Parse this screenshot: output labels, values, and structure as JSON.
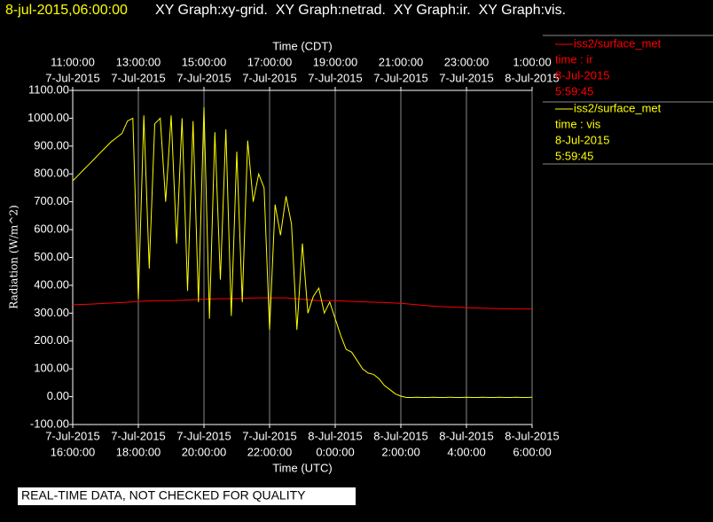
{
  "chart_data": {
    "type": "line",
    "title_time": "8-jul-2015,06:00:00",
    "title": "XY Graph:xy-grid.  XY Graph:netrad.  XY Graph:ir.  XY Graph:vis.",
    "xlabel": "Time (UTC)",
    "x2label": "Time (CDT)",
    "ylabel": "Radiation (W/m^2)",
    "note": "REAL-TIME DATA, NOT CHECKED FOR QUALITY",
    "grid": true,
    "xlim": [
      "2015-07-07T16:00:00",
      "2015-07-08T06:00:00"
    ],
    "xticks": [
      {
        "value": "2015-07-07T16:00:00",
        "label": [
          "7-Jul-2015",
          "16:00:00"
        ]
      },
      {
        "value": "2015-07-07T18:00:00",
        "label": [
          "7-Jul-2015",
          "18:00:00"
        ]
      },
      {
        "value": "2015-07-07T20:00:00",
        "label": [
          "7-Jul-2015",
          "20:00:00"
        ]
      },
      {
        "value": "2015-07-07T22:00:00",
        "label": [
          "7-Jul-2015",
          "22:00:00"
        ]
      },
      {
        "value": "2015-07-08T00:00:00",
        "label": [
          "8-Jul-2015",
          "0:00:00"
        ]
      },
      {
        "value": "2015-07-08T02:00:00",
        "label": [
          "8-Jul-2015",
          "2:00:00"
        ]
      },
      {
        "value": "2015-07-08T04:00:00",
        "label": [
          "8-Jul-2015",
          "4:00:00"
        ]
      },
      {
        "value": "2015-07-08T06:00:00",
        "label": [
          "8-Jul-2015",
          "6:00:00"
        ]
      }
    ],
    "x2ticks": [
      {
        "value": "2015-07-07T16:00:00",
        "label": [
          "11:00:00",
          "7-Jul-2015"
        ]
      },
      {
        "value": "2015-07-07T18:00:00",
        "label": [
          "13:00:00",
          "7-Jul-2015"
        ]
      },
      {
        "value": "2015-07-07T20:00:00",
        "label": [
          "15:00:00",
          "7-Jul-2015"
        ]
      },
      {
        "value": "2015-07-07T22:00:00",
        "label": [
          "17:00:00",
          "7-Jul-2015"
        ]
      },
      {
        "value": "2015-07-08T00:00:00",
        "label": [
          "19:00:00",
          "7-Jul-2015"
        ]
      },
      {
        "value": "2015-07-08T02:00:00",
        "label": [
          "21:00:00",
          "7-Jul-2015"
        ]
      },
      {
        "value": "2015-07-08T04:00:00",
        "label": [
          "23:00:00",
          "7-Jul-2015"
        ]
      },
      {
        "value": "2015-07-08T06:00:00",
        "label": [
          "1:00:00",
          "8-Jul-2015"
        ]
      }
    ],
    "ylim": [
      -100,
      1100
    ],
    "yticks": [
      {
        "value": -100,
        "label": "-100.00"
      },
      {
        "value": 0,
        "label": "0.00"
      },
      {
        "value": 100,
        "label": "100.00"
      },
      {
        "value": 200,
        "label": "200.00"
      },
      {
        "value": 300,
        "label": "300.00"
      },
      {
        "value": 400,
        "label": "400.00"
      },
      {
        "value": 500,
        "label": "500.00"
      },
      {
        "value": 600,
        "label": "600.00"
      },
      {
        "value": 700,
        "label": "700.00"
      },
      {
        "value": 800,
        "label": "800.00"
      },
      {
        "value": 900,
        "label": "900.00"
      },
      {
        "value": 1000,
        "label": "1000.00"
      },
      {
        "value": 1100,
        "label": "1100.00"
      }
    ],
    "series": [
      {
        "name": "iss2/surface_met",
        "label": "time : ir",
        "date": "8-Jul-2015",
        "time": "5:59:45",
        "color": "#ff0000",
        "x": [
          "2015-07-07T16:00:00",
          "2015-07-07T16:30:00",
          "2015-07-07T17:00:00",
          "2015-07-07T17:30:00",
          "2015-07-07T18:00:00",
          "2015-07-07T18:30:00",
          "2015-07-07T19:00:00",
          "2015-07-07T19:30:00",
          "2015-07-07T20:00:00",
          "2015-07-07T20:30:00",
          "2015-07-07T21:00:00",
          "2015-07-07T21:30:00",
          "2015-07-07T22:00:00",
          "2015-07-07T22:30:00",
          "2015-07-07T23:00:00",
          "2015-07-07T23:30:00",
          "2015-07-08T00:00:00",
          "2015-07-08T00:30:00",
          "2015-07-08T01:00:00",
          "2015-07-08T01:30:00",
          "2015-07-08T02:00:00",
          "2015-07-08T02:30:00",
          "2015-07-08T03:00:00",
          "2015-07-08T03:30:00",
          "2015-07-08T04:00:00",
          "2015-07-08T04:30:00",
          "2015-07-08T05:00:00",
          "2015-07-08T05:30:00",
          "2015-07-08T06:00:00"
        ],
        "values": [
          330,
          332,
          335,
          338,
          342,
          345,
          345,
          347,
          350,
          352,
          352,
          355,
          355,
          355,
          350,
          345,
          345,
          342,
          340,
          338,
          335,
          330,
          325,
          322,
          320,
          318,
          316,
          315,
          315
        ]
      },
      {
        "name": "iss2/surface_met",
        "label": "time : vis",
        "date": "8-Jul-2015",
        "time": "5:59:45",
        "color": "#ffff00",
        "x": [
          "2015-07-07T16:00:00",
          "2015-07-07T16:10:00",
          "2015-07-07T16:20:00",
          "2015-07-07T16:30:00",
          "2015-07-07T16:40:00",
          "2015-07-07T16:50:00",
          "2015-07-07T17:00:00",
          "2015-07-07T17:10:00",
          "2015-07-07T17:20:00",
          "2015-07-07T17:30:00",
          "2015-07-07T17:40:00",
          "2015-07-07T17:50:00",
          "2015-07-07T18:00:00",
          "2015-07-07T18:10:00",
          "2015-07-07T18:20:00",
          "2015-07-07T18:30:00",
          "2015-07-07T18:40:00",
          "2015-07-07T18:50:00",
          "2015-07-07T19:00:00",
          "2015-07-07T19:10:00",
          "2015-07-07T19:20:00",
          "2015-07-07T19:30:00",
          "2015-07-07T19:40:00",
          "2015-07-07T19:50:00",
          "2015-07-07T20:00:00",
          "2015-07-07T20:10:00",
          "2015-07-07T20:20:00",
          "2015-07-07T20:30:00",
          "2015-07-07T20:40:00",
          "2015-07-07T20:50:00",
          "2015-07-07T21:00:00",
          "2015-07-07T21:10:00",
          "2015-07-07T21:20:00",
          "2015-07-07T21:30:00",
          "2015-07-07T21:40:00",
          "2015-07-07T21:50:00",
          "2015-07-07T22:00:00",
          "2015-07-07T22:10:00",
          "2015-07-07T22:20:00",
          "2015-07-07T22:30:00",
          "2015-07-07T22:40:00",
          "2015-07-07T22:50:00",
          "2015-07-07T23:00:00",
          "2015-07-07T23:10:00",
          "2015-07-07T23:20:00",
          "2015-07-07T23:30:00",
          "2015-07-07T23:40:00",
          "2015-07-07T23:50:00",
          "2015-07-08T00:00:00",
          "2015-07-08T00:10:00",
          "2015-07-08T00:20:00",
          "2015-07-08T00:30:00",
          "2015-07-08T00:40:00",
          "2015-07-08T00:50:00",
          "2015-07-08T01:00:00",
          "2015-07-08T01:10:00",
          "2015-07-08T01:20:00",
          "2015-07-08T01:30:00",
          "2015-07-08T01:40:00",
          "2015-07-08T01:50:00",
          "2015-07-08T02:00:00",
          "2015-07-08T02:10:00",
          "2015-07-08T02:20:00",
          "2015-07-08T02:30:00",
          "2015-07-08T02:40:00",
          "2015-07-08T02:50:00",
          "2015-07-08T03:00:00",
          "2015-07-08T03:10:00",
          "2015-07-08T03:20:00",
          "2015-07-08T03:30:00",
          "2015-07-08T03:40:00",
          "2015-07-08T03:50:00",
          "2015-07-08T04:00:00",
          "2015-07-08T04:10:00",
          "2015-07-08T04:20:00",
          "2015-07-08T04:30:00",
          "2015-07-08T04:40:00",
          "2015-07-08T04:50:00",
          "2015-07-08T05:00:00",
          "2015-07-08T05:10:00",
          "2015-07-08T05:20:00",
          "2015-07-08T05:30:00",
          "2015-07-08T05:40:00",
          "2015-07-08T05:50:00",
          "2015-07-08T06:00:00"
        ],
        "values": [
          775,
          795,
          815,
          835,
          855,
          875,
          895,
          915,
          930,
          945,
          990,
          1000,
          350,
          1010,
          460,
          980,
          1000,
          700,
          1010,
          550,
          1000,
          380,
          990,
          340,
          1040,
          280,
          950,
          420,
          960,
          290,
          880,
          340,
          920,
          700,
          800,
          750,
          240,
          690,
          580,
          720,
          620,
          240,
          550,
          300,
          360,
          390,
          300,
          340,
          280,
          220,
          170,
          160,
          130,
          100,
          85,
          80,
          65,
          40,
          25,
          10,
          2,
          -3,
          -3,
          -2,
          -3,
          -3,
          -2,
          -3,
          -3,
          -2,
          -3,
          -3,
          -2,
          -3,
          -3,
          -2,
          -3,
          -3,
          -2,
          -3,
          -3,
          -2,
          -3,
          -3,
          -2
        ]
      }
    ]
  }
}
